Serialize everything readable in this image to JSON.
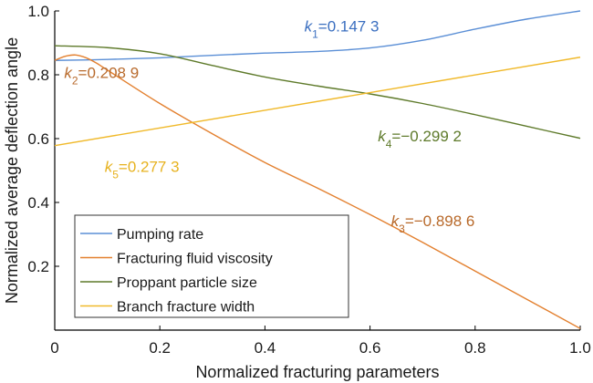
{
  "chart_data": {
    "type": "line",
    "title": "",
    "xlabel": "Normalized fracturing parameters",
    "ylabel": "Normalized average deflection angle",
    "xlim": [
      0,
      1
    ],
    "ylim": [
      0,
      1
    ],
    "xticks": [
      0,
      0.2,
      0.4,
      0.6,
      0.8,
      1.0
    ],
    "xtick_labels": [
      "0",
      "0.2",
      "0.4",
      "0.6",
      "0.8",
      "1.0"
    ],
    "yticks": [
      0.2,
      0.4,
      0.6,
      0.8,
      1.0
    ],
    "ytick_labels": [
      "0.2",
      "0.4",
      "0.6",
      "0.8",
      "1.0"
    ],
    "grid": false,
    "legend_position": "bottom-left",
    "series": [
      {
        "name": "Pumping rate",
        "color": "#5b8fd6",
        "x": [
          0,
          0.1,
          0.2,
          0.3,
          0.4,
          0.5,
          0.6,
          0.7,
          0.8,
          0.9,
          1.0
        ],
        "y": [
          0.845,
          0.848,
          0.853,
          0.861,
          0.868,
          0.873,
          0.884,
          0.908,
          0.943,
          0.975,
          1.0
        ]
      },
      {
        "name": "Fracturing fluid viscosity",
        "color": "#e3802f",
        "x": [
          0,
          0.02,
          0.04,
          0.06,
          0.08,
          0.1,
          0.2,
          0.3,
          0.4,
          0.5,
          0.6,
          0.7,
          0.8,
          0.9,
          1.0
        ],
        "y": [
          0.845,
          0.858,
          0.862,
          0.853,
          0.836,
          0.815,
          0.71,
          0.615,
          0.525,
          0.445,
          0.362,
          0.275,
          0.185,
          0.095,
          0.005
        ]
      },
      {
        "name": "Proppant particle size",
        "color": "#5e7a2a",
        "x": [
          0,
          0.1,
          0.2,
          0.3,
          0.4,
          0.5,
          0.6,
          0.7,
          0.8,
          0.9,
          1.0
        ],
        "y": [
          0.891,
          0.885,
          0.866,
          0.829,
          0.793,
          0.765,
          0.74,
          0.71,
          0.675,
          0.638,
          0.601
        ]
      },
      {
        "name": "Branch fracture width",
        "color": "#f0b92a",
        "x": [
          0,
          1.0
        ],
        "y": [
          0.578,
          0.855
        ]
      }
    ],
    "annotations": [
      {
        "series": 0,
        "base": "k",
        "sub": "1",
        "text": "=0.147 3",
        "x": 0.475,
        "y": 0.953,
        "color": "#3b6fc0"
      },
      {
        "series": 1,
        "base": "k",
        "sub": "2",
        "text": "=0.208 9",
        "x": 0.018,
        "y": 0.807,
        "color": "#b86a2c"
      },
      {
        "series": 2,
        "base": "k",
        "sub": "4",
        "text": "=−0.299 2",
        "x": 0.615,
        "y": 0.608,
        "color": "#5e7a2a"
      },
      {
        "series": 3,
        "base": "k",
        "sub": "5",
        "text": "=0.277 3",
        "x": 0.095,
        "y": 0.513,
        "color": "#e7b21f"
      },
      {
        "series": 1,
        "base": "k",
        "sub": "3",
        "text": "=−0.898 6",
        "x": 0.64,
        "y": 0.343,
        "color": "#b8692a"
      }
    ]
  }
}
